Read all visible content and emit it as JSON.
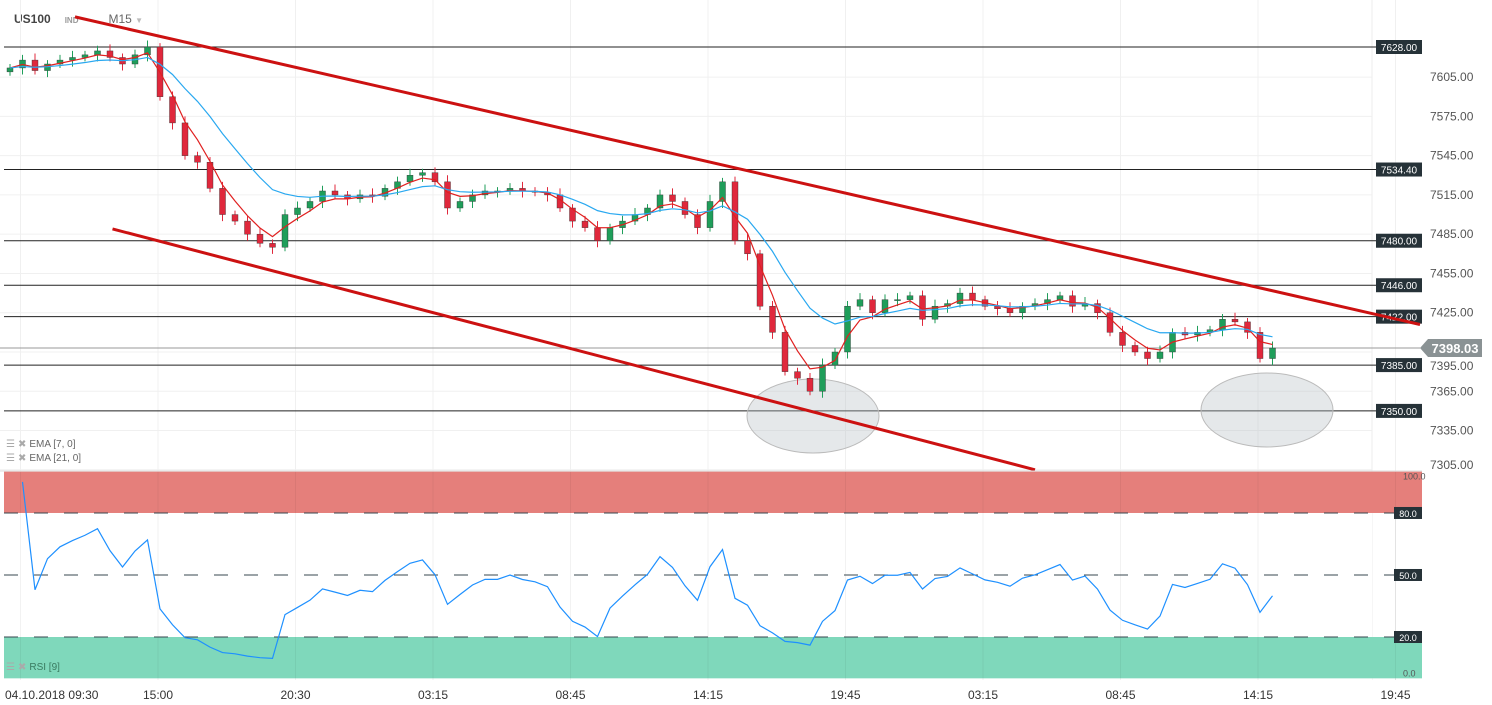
{
  "header": {
    "symbol": "US100",
    "type": "IND",
    "timeframe": "M15"
  },
  "indicators": [
    {
      "label": "EMA [7, 0]",
      "color": "#e02020"
    },
    {
      "label": "EMA [21, 0]",
      "color": "#29a8f0"
    }
  ],
  "rsi": {
    "label": "RSI [9]",
    "color": "#1e90ff",
    "levels": [
      {
        "label": "100.0",
        "value": 100
      },
      {
        "label": "80.0",
        "value": 80
      },
      {
        "label": "50.0",
        "value": 50
      },
      {
        "label": "20.0",
        "value": 20
      },
      {
        "label": "0.0",
        "value": 0
      }
    ],
    "overbought_color": "#e57f7b",
    "oversold_color": "#7fd8bb"
  },
  "chart_data": {
    "type": "candlestick",
    "title": "US100",
    "ylim": [
      7295,
      7652
    ],
    "y_ticks": [
      "7605.00",
      "7575.00",
      "7545.00",
      "7515.00",
      "7485.00",
      "7455.00",
      "7425.00",
      "7395.00",
      "7365.00",
      "7335.00",
      "7305.00"
    ],
    "x_ticks": [
      "04.10.2018  09:30",
      "15:00",
      "20:30",
      "03:15",
      "08:45",
      "14:15",
      "19:45",
      "03:15",
      "08:45",
      "14:15",
      "19:45"
    ],
    "closes": [
      7612,
      7618,
      7610,
      7615,
      7618,
      7620,
      7622,
      7625,
      7620,
      7615,
      7622,
      7628,
      7590,
      7570,
      7545,
      7540,
      7520,
      7500,
      7495,
      7485,
      7478,
      7475,
      7500,
      7505,
      7510,
      7518,
      7515,
      7512,
      7515,
      7514,
      7520,
      7525,
      7530,
      7532,
      7525,
      7505,
      7510,
      7515,
      7518,
      7518,
      7520,
      7518,
      7517,
      7515,
      7505,
      7495,
      7490,
      7480,
      7490,
      7495,
      7500,
      7505,
      7515,
      7510,
      7500,
      7490,
      7510,
      7525,
      7480,
      7470,
      7430,
      7410,
      7380,
      7375,
      7365,
      7385,
      7395,
      7430,
      7435,
      7425,
      7435,
      7435,
      7438,
      7420,
      7430,
      7432,
      7440,
      7435,
      7430,
      7428,
      7425,
      7430,
      7432,
      7435,
      7438,
      7430,
      7432,
      7425,
      7410,
      7400,
      7395,
      7390,
      7395,
      7410,
      7408,
      7410,
      7412,
      7420,
      7418,
      7410,
      7390,
      7398
    ],
    "current_price": {
      "label": "7398.03",
      "value": 7398.03
    },
    "levels": [
      {
        "label": "7628.00",
        "value": 7628
      },
      {
        "label": "7534.40",
        "value": 7534.4
      },
      {
        "label": "7480.00",
        "value": 7480
      },
      {
        "label": "7446.00",
        "value": 7446
      },
      {
        "label": "7422.00",
        "value": 7422
      },
      {
        "label": "7385.00",
        "value": 7385
      },
      {
        "label": "7350.00",
        "value": 7350
      }
    ],
    "trendlines": [
      {
        "from": [
          5.2,
          7651
        ],
        "to": [
          112.8,
          7416
        ]
      },
      {
        "from": [
          8.2,
          7489
        ],
        "to": [
          82,
          7305
        ]
      }
    ],
    "up_color": "#1f9e5a",
    "down_color": "#e0283c",
    "trend_color": "#cc1111"
  }
}
